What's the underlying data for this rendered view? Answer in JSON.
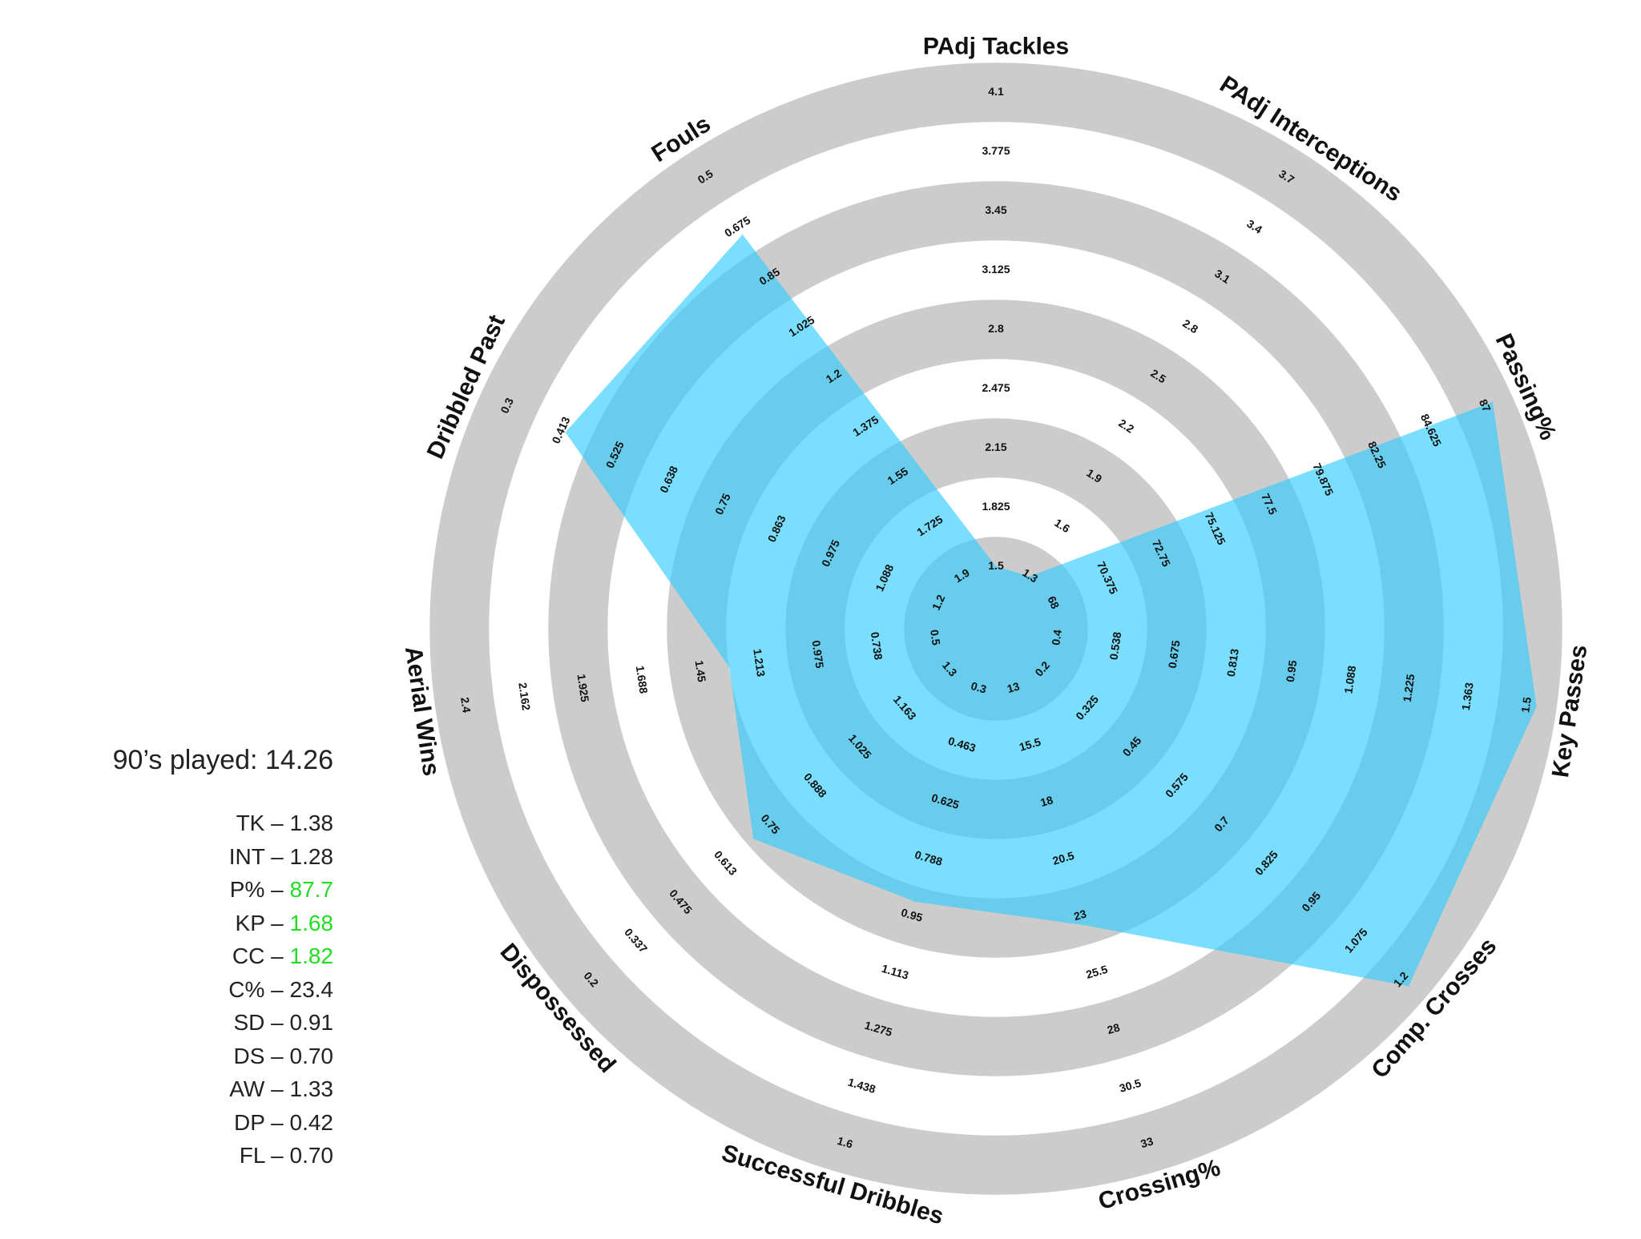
{
  "chart_data": {
    "type": "radar",
    "title": "",
    "ring_colors": [
      "#ffffff",
      "#cccccc"
    ],
    "fill_color": "#33ccff",
    "axes": [
      {
        "name": "PAdj Tackles",
        "value": 1.38,
        "ticks": [
          "1.5",
          "1.825",
          "2.15",
          "2.475",
          "2.8",
          "3.125",
          "3.45",
          "3.775",
          "4.1"
        ]
      },
      {
        "name": "PAdj Interceptions",
        "value": 1.28,
        "ticks": [
          "1.3",
          "1.6",
          "1.9",
          "2.2",
          "2.5",
          "2.8",
          "3.1",
          "3.4",
          "3.7"
        ]
      },
      {
        "name": "Passing%",
        "value": 87.7,
        "ticks": [
          "68",
          "70.375",
          "72.75",
          "75.125",
          "77.5",
          "79.875",
          "82.25",
          "84.625",
          "87"
        ]
      },
      {
        "name": "Key Passes",
        "value": 1.68,
        "ticks": [
          "0.4",
          "0.538",
          "0.675",
          "0.813",
          "0.95",
          "1.088",
          "1.225",
          "1.363",
          "1.5"
        ]
      },
      {
        "name": "Comp. Crosses",
        "value": 1.82,
        "ticks": [
          "0.2",
          "0.325",
          "0.45",
          "0.575",
          "0.7",
          "0.825",
          "0.95",
          "1.075",
          "1.2"
        ]
      },
      {
        "name": "Crossing%",
        "value": 23.4,
        "ticks": [
          "13",
          "15.5",
          "18",
          "20.5",
          "23",
          "25.5",
          "28",
          "30.5",
          "33"
        ]
      },
      {
        "name": "Successful Dribbles",
        "value": 0.91,
        "ticks": [
          "0.3",
          "0.463",
          "0.625",
          "0.788",
          "0.95",
          "1.113",
          "1.275",
          "1.438",
          "1.6"
        ]
      },
      {
        "name": "Dispossessed",
        "value": 0.7,
        "ticks": [
          "1.3",
          "1.163",
          "1.025",
          "0.888",
          "0.75",
          "0.613",
          "0.475",
          "0.337",
          "0.2"
        ]
      },
      {
        "name": "Aerial Wins",
        "value": 1.33,
        "ticks": [
          "0.5",
          "0.738",
          "0.975",
          "1.213",
          "1.45",
          "1.688",
          "1.925",
          "2.162",
          "2.4"
        ]
      },
      {
        "name": "Dribbled Past",
        "value": 0.42,
        "ticks": [
          "1.2",
          "1.088",
          "0.975",
          "0.863",
          "0.75",
          "0.638",
          "0.525",
          "0.413",
          "0.3"
        ]
      },
      {
        "name": "Fouls",
        "value": 0.7,
        "ticks": [
          "1.9",
          "1.725",
          "1.55",
          "1.375",
          "1.2",
          "1.025",
          "0.85",
          "0.675",
          "0.5"
        ]
      }
    ]
  },
  "sidebar": {
    "played": "90’s played: 14.26",
    "stats": [
      {
        "label": "TK – ",
        "value": "1.38",
        "highlight": false
      },
      {
        "label": "INT – ",
        "value": "1.28",
        "highlight": false
      },
      {
        "label": "P% – ",
        "value": "87.7",
        "highlight": true
      },
      {
        "label": "KP – ",
        "value": "1.68",
        "highlight": true
      },
      {
        "label": "CC – ",
        "value": "1.82",
        "highlight": true
      },
      {
        "label": "C% – ",
        "value": "23.4",
        "highlight": false
      },
      {
        "label": "SD – ",
        "value": "0.91",
        "highlight": false
      },
      {
        "label": "DS – ",
        "value": "0.70",
        "highlight": false
      },
      {
        "label": "AW – ",
        "value": "1.33",
        "highlight": false
      },
      {
        "label": "DP – ",
        "value": "0.42",
        "highlight": false
      },
      {
        "label": "FL – ",
        "value": "0.70",
        "highlight": false
      }
    ],
    "highlight_color": "#22dd22"
  }
}
